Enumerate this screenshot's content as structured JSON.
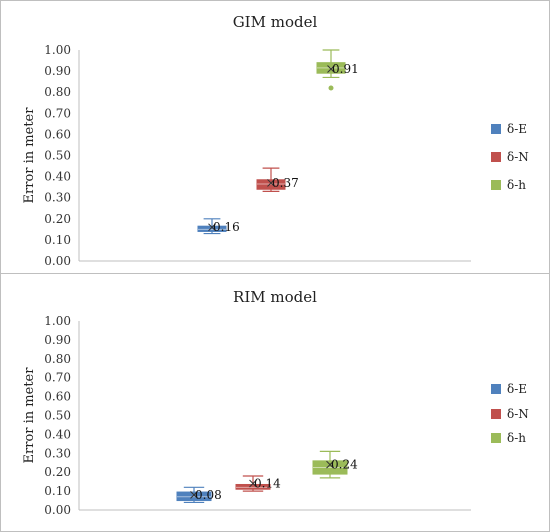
{
  "chart_data": [
    {
      "type": "box",
      "title": "GIM model",
      "ylabel": "Error in meter",
      "xlabel": "",
      "ylim": [
        0,
        1.0
      ],
      "yticks": [
        "0.00",
        "0.10",
        "0.20",
        "0.30",
        "0.40",
        "0.50",
        "0.60",
        "0.70",
        "0.80",
        "0.90",
        "1.00"
      ],
      "legend_position": "right",
      "grid": false,
      "series": [
        {
          "name": "δ-E",
          "color": "#4f81bd",
          "whisker_low": 0.13,
          "q1": 0.14,
          "median": 0.15,
          "q3": 0.165,
          "whisker_high": 0.2,
          "mean": 0.16,
          "outliers": [],
          "label": "0.16"
        },
        {
          "name": "δ-N",
          "color": "#c0504d",
          "whisker_low": 0.33,
          "q1": 0.34,
          "median": 0.365,
          "q3": 0.385,
          "whisker_high": 0.44,
          "mean": 0.37,
          "outliers": [],
          "label": "0.37"
        },
        {
          "name": "δ-h",
          "color": "#9bbb59",
          "whisker_low": 0.87,
          "q1": 0.89,
          "median": 0.915,
          "q3": 0.94,
          "whisker_high": 1.0,
          "mean": 0.91,
          "outliers": [
            0.82
          ],
          "label": "0.91"
        }
      ]
    },
    {
      "type": "box",
      "title": "RIM model",
      "ylabel": "Error in meter",
      "xlabel": "",
      "ylim": [
        0,
        1.0
      ],
      "yticks": [
        "0.00",
        "0.10",
        "0.20",
        "0.30",
        "0.40",
        "0.50",
        "0.60",
        "0.70",
        "0.80",
        "0.90",
        "1.00"
      ],
      "legend_position": "right",
      "grid": false,
      "series": [
        {
          "name": "δ-E",
          "color": "#4f81bd",
          "whisker_low": 0.04,
          "q1": 0.05,
          "median": 0.07,
          "q3": 0.095,
          "whisker_high": 0.12,
          "mean": 0.08,
          "outliers": [],
          "label": "0.08"
        },
        {
          "name": "δ-N",
          "color": "#c0504d",
          "whisker_low": 0.1,
          "q1": 0.11,
          "median": 0.12,
          "q3": 0.135,
          "whisker_high": 0.18,
          "mean": 0.14,
          "outliers": [],
          "label": "0.14"
        },
        {
          "name": "δ-h",
          "color": "#9bbb59",
          "whisker_low": 0.17,
          "q1": 0.19,
          "median": 0.225,
          "q3": 0.26,
          "whisker_high": 0.31,
          "mean": 0.24,
          "outliers": [],
          "label": "0.24"
        }
      ]
    }
  ]
}
